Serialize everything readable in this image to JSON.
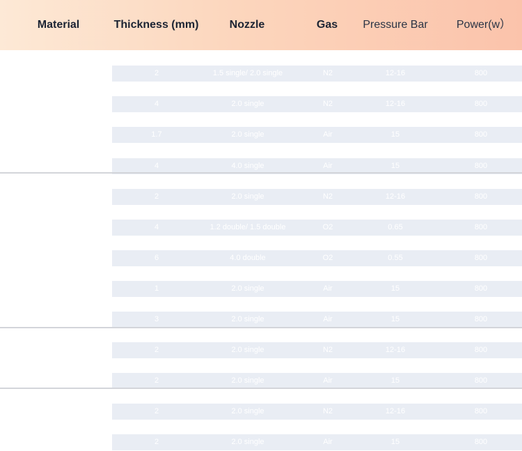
{
  "header": {
    "material": "Material",
    "thickness": "Thickness (mm)",
    "nozzle": "Nozzle",
    "gas": "Gas",
    "pressure": "Pressure Bar",
    "power": "Power(w）"
  },
  "rows": [
    {
      "thickness": "2",
      "nozzle": "1.5 single/ 2.0 single",
      "gas": "N2",
      "pressure": "12-16",
      "power": "800"
    },
    {
      "thickness": "4",
      "nozzle": "2.0 single",
      "gas": "N2",
      "pressure": "12-16",
      "power": "800"
    },
    {
      "thickness": "1.7",
      "nozzle": "2.0 single",
      "gas": "Air",
      "pressure": "15",
      "power": "800"
    },
    {
      "thickness": "4",
      "nozzle": "4.0 single",
      "gas": "Air",
      "pressure": "15",
      "power": "800"
    },
    {
      "thickness": "2",
      "nozzle": "2.0 single",
      "gas": "N2",
      "pressure": "12-16",
      "power": "800"
    },
    {
      "thickness": "4",
      "nozzle": "1.2 double/ 1.5 double",
      "gas": "O2",
      "pressure": "0.65",
      "power": "800"
    },
    {
      "thickness": "6",
      "nozzle": "4.0 double",
      "gas": "O2",
      "pressure": "0.55",
      "power": "800"
    },
    {
      "thickness": "1",
      "nozzle": "2.0 single",
      "gas": "Air",
      "pressure": "15",
      "power": "800"
    },
    {
      "thickness": "3",
      "nozzle": "2.0 single",
      "gas": "Air",
      "pressure": "15",
      "power": "800"
    },
    {
      "thickness": "2",
      "nozzle": "2.0 single",
      "gas": "N2",
      "pressure": "12-16",
      "power": "800"
    },
    {
      "thickness": "2",
      "nozzle": "2.0 single",
      "gas": "Air",
      "pressure": "15",
      "power": "800"
    },
    {
      "thickness": "2",
      "nozzle": "2.0 single",
      "gas": "N2",
      "pressure": "12-16",
      "power": "800"
    },
    {
      "thickness": "2",
      "nozzle": "2.0 single",
      "gas": "Air",
      "pressure": "15",
      "power": "800"
    }
  ],
  "colors": {
    "header_gradient_start": "#fde9d6",
    "header_gradient_end": "#fbc3ab",
    "row_background": "#e9edf4",
    "row_text": "#ffffff",
    "divider": "#d3d5da"
  }
}
